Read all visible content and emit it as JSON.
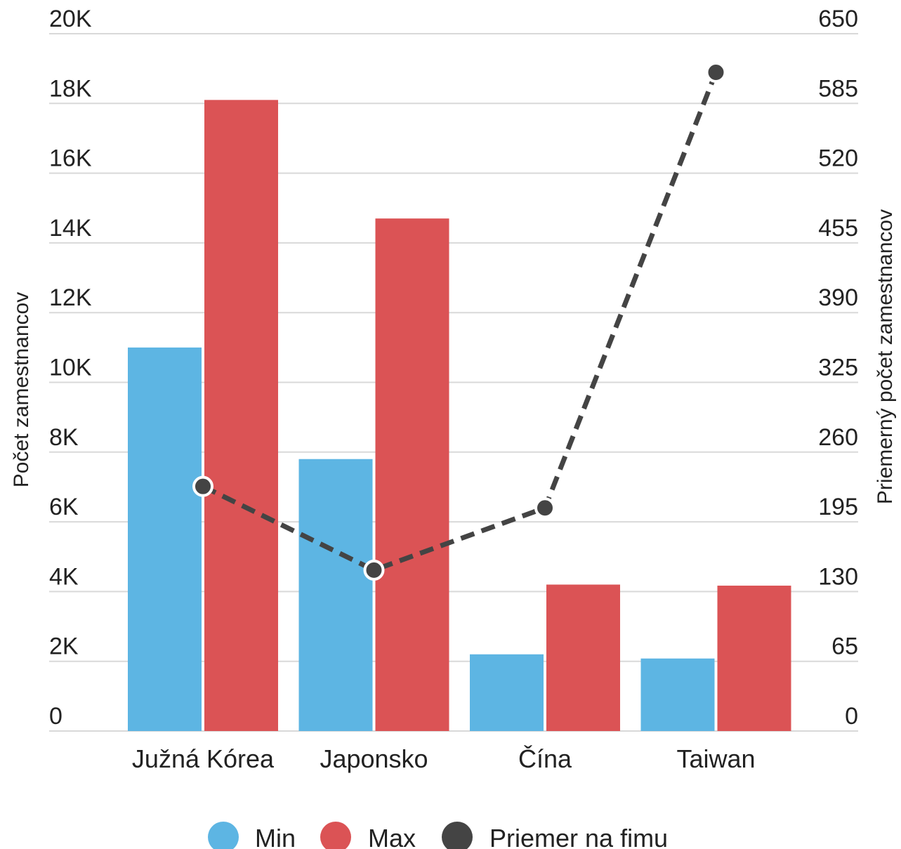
{
  "chart_data": {
    "type": "bar",
    "categories": [
      "Južná Kórea",
      "Japonsko",
      "Čína",
      "Taiwan"
    ],
    "series": [
      {
        "name": "Min",
        "type": "bar",
        "axis": "left",
        "color": "#5DB5E3",
        "values": [
          11000,
          7800,
          2200,
          2080
        ]
      },
      {
        "name": "Max",
        "type": "bar",
        "axis": "left",
        "color": "#DB5355",
        "values": [
          18100,
          14700,
          4200,
          4170
        ]
      },
      {
        "name": "Priemer na fimu",
        "type": "line",
        "axis": "right",
        "style": "dashed",
        "color": "#444444",
        "values": [
          228,
          150,
          208,
          614
        ]
      }
    ],
    "y_left": {
      "label": "Počet zamestnancov",
      "range": [
        0,
        20000
      ],
      "ticks": [
        "0",
        "2K",
        "4K",
        "6K",
        "8K",
        "10K",
        "12K",
        "14K",
        "16K",
        "18K",
        "20K"
      ]
    },
    "y_right": {
      "label": "Priemerný počet zamestnancov",
      "range": [
        0,
        650
      ],
      "ticks": [
        "0",
        "65",
        "130",
        "195",
        "260",
        "325",
        "390",
        "455",
        "520",
        "585",
        "650"
      ]
    },
    "grid": true,
    "legend": "bottom"
  }
}
